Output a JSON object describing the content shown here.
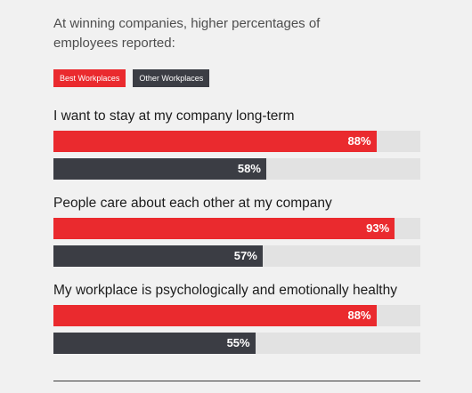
{
  "intro": "At winning companies, higher percentages of employees reported:",
  "legend": [
    {
      "label": "Best Workplaces",
      "color": "#ea2a2e"
    },
    {
      "label": "Other Workplaces",
      "color": "#3b3d44"
    }
  ],
  "chart_data": {
    "type": "bar",
    "orientation": "horizontal",
    "xlim": [
      0,
      100
    ],
    "categories": [
      "I want to stay at my company long-term",
      "People care about each other at my company",
      "My workplace is psychologically and emotionally healthy"
    ],
    "series": [
      {
        "name": "Best Workplaces",
        "color": "#ea2a2e",
        "values": [
          88,
          93,
          88
        ],
        "labels": [
          "88%",
          "93%",
          "88%"
        ]
      },
      {
        "name": "Other Workplaces",
        "color": "#3b3d44",
        "values": [
          58,
          57,
          55
        ],
        "labels": [
          "58%",
          "57%",
          "55%"
        ]
      }
    ]
  }
}
